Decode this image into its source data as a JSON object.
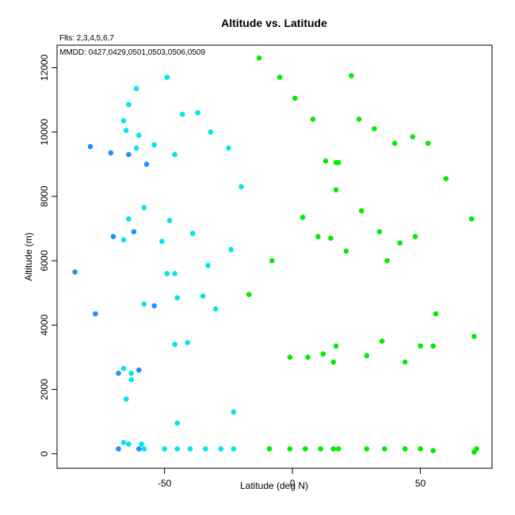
{
  "chart_data": {
    "type": "scatter",
    "title": "Altitude vs. Latitude",
    "subtitle_line1": "Flts: 2,3,4,5,6,7",
    "subtitle_line2": "MMDD: 0427,0429,0501,0503,0506,0509",
    "xlabel": "Latitude (deg N)",
    "ylabel": "Altitude (m)",
    "xlim": [
      -92,
      78
    ],
    "ylim": [
      -450,
      12700
    ],
    "xticks": [
      -50,
      0,
      50
    ],
    "yticks": [
      0,
      2000,
      4000,
      6000,
      8000,
      10000,
      12000
    ],
    "grid": false,
    "series": [
      {
        "color": "#1e90ff",
        "points": [
          [
            -85,
            5650
          ],
          [
            -79,
            9550
          ],
          [
            -77,
            4350
          ],
          [
            -71,
            9350
          ],
          [
            -70,
            6750
          ],
          [
            -68,
            2500
          ],
          [
            -68,
            150
          ],
          [
            -64,
            9300
          ],
          [
            -62,
            6900
          ],
          [
            -60,
            2600
          ],
          [
            -60,
            150
          ],
          [
            -57,
            9000
          ],
          [
            -54,
            4600
          ]
        ]
      },
      {
        "color": "#00e5ee",
        "points": [
          [
            -66,
            10350
          ],
          [
            -65,
            10050
          ],
          [
            -64,
            10850
          ],
          [
            -61,
            9500
          ],
          [
            -61,
            11350
          ],
          [
            -60,
            9900
          ],
          [
            -54,
            9600
          ],
          [
            -49,
            11700
          ],
          [
            -46,
            9300
          ],
          [
            -43,
            10550
          ],
          [
            -37,
            10600
          ],
          [
            -32,
            10000
          ],
          [
            -25,
            9500
          ],
          [
            -20,
            8300
          ],
          [
            -64,
            7300
          ],
          [
            -58,
            7650
          ],
          [
            -66,
            6650
          ],
          [
            -51,
            6600
          ],
          [
            -48,
            7250
          ],
          [
            -39,
            6850
          ],
          [
            -24,
            6350
          ],
          [
            -33,
            5850
          ],
          [
            -49,
            5600
          ],
          [
            -46,
            5600
          ],
          [
            -58,
            4650
          ],
          [
            -45,
            4850
          ],
          [
            -35,
            4900
          ],
          [
            -30,
            4500
          ],
          [
            -46,
            3400
          ],
          [
            -41,
            3450
          ],
          [
            -66,
            2650
          ],
          [
            -63,
            2500
          ],
          [
            -63,
            2300
          ],
          [
            -65,
            1700
          ],
          [
            -45,
            950
          ],
          [
            -23,
            1300
          ],
          [
            -66,
            350
          ],
          [
            -64,
            300
          ],
          [
            -59,
            300
          ],
          [
            -58,
            150
          ],
          [
            -50,
            150
          ],
          [
            -45,
            150
          ],
          [
            -40,
            150
          ],
          [
            -34,
            150
          ],
          [
            -28,
            150
          ],
          [
            -23,
            150
          ]
        ]
      },
      {
        "color": "#00ee00",
        "points": [
          [
            -13,
            12300
          ],
          [
            -5,
            11700
          ],
          [
            1,
            11050
          ],
          [
            8,
            10400
          ],
          [
            23,
            11750
          ],
          [
            26,
            10400
          ],
          [
            32,
            10100
          ],
          [
            40,
            9650
          ],
          [
            47,
            9850
          ],
          [
            53,
            9650
          ],
          [
            13,
            9100
          ],
          [
            17,
            9050
          ],
          [
            18,
            9050
          ],
          [
            17,
            8200
          ],
          [
            60,
            8550
          ],
          [
            4,
            7350
          ],
          [
            27,
            7550
          ],
          [
            34,
            6900
          ],
          [
            42,
            6550
          ],
          [
            48,
            6750
          ],
          [
            70,
            7300
          ],
          [
            10,
            6750
          ],
          [
            15,
            6700
          ],
          [
            21,
            6300
          ],
          [
            37,
            6000
          ],
          [
            -8,
            6000
          ],
          [
            -17,
            4950
          ],
          [
            56,
            4350
          ],
          [
            71,
            3650
          ],
          [
            -1,
            3000
          ],
          [
            6,
            3000
          ],
          [
            12,
            3100
          ],
          [
            17,
            3350
          ],
          [
            16,
            2850
          ],
          [
            29,
            3050
          ],
          [
            35,
            3500
          ],
          [
            44,
            2850
          ],
          [
            50,
            3350
          ],
          [
            55,
            3350
          ],
          [
            -9,
            150
          ],
          [
            -1,
            150
          ],
          [
            5,
            150
          ],
          [
            11,
            150
          ],
          [
            16,
            150
          ],
          [
            18,
            150
          ],
          [
            29,
            150
          ],
          [
            36,
            150
          ],
          [
            44,
            150
          ],
          [
            50,
            150
          ],
          [
            55,
            100
          ],
          [
            71,
            50
          ],
          [
            72,
            150
          ]
        ]
      }
    ]
  }
}
